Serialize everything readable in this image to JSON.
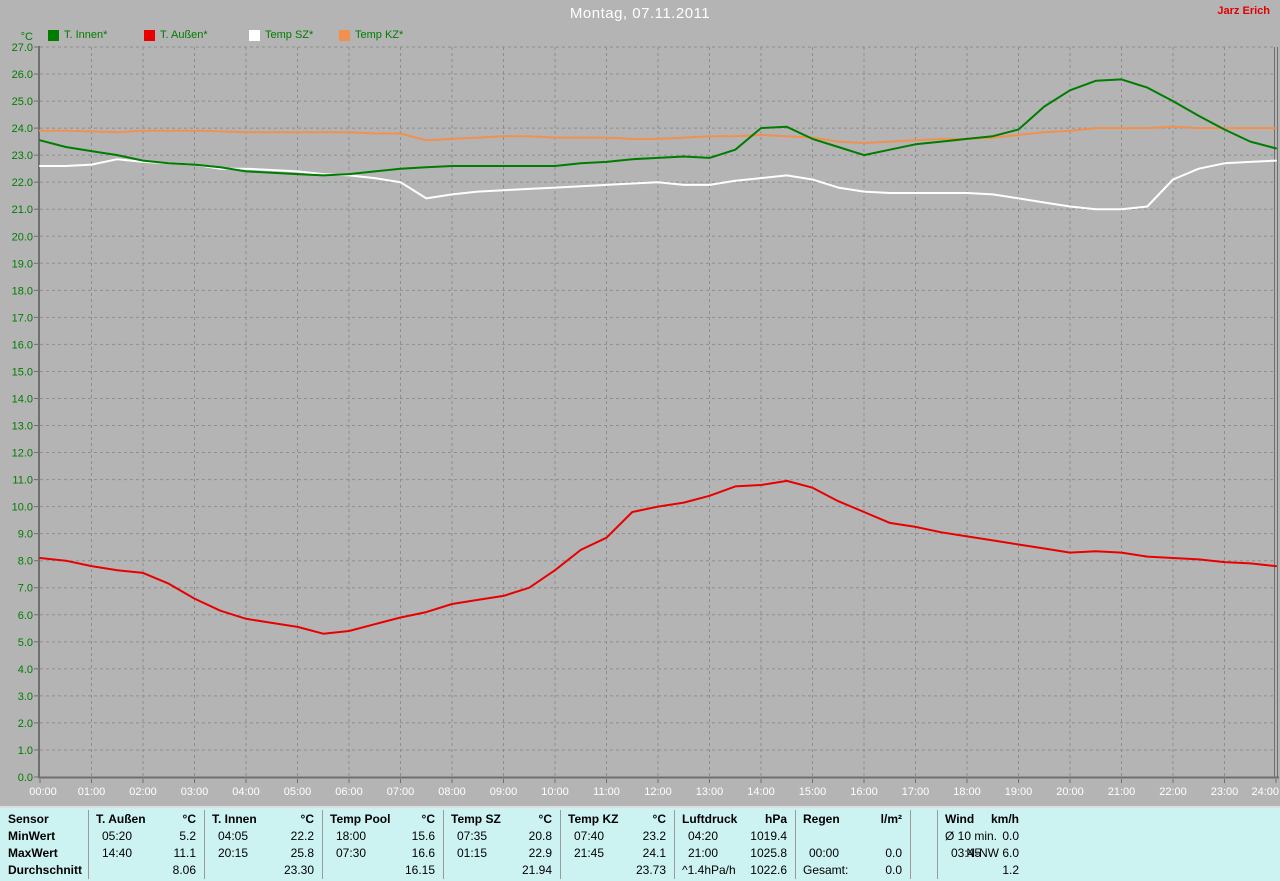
{
  "window": {
    "title": "Montag, 07.11.2011",
    "author": "Jarz Erich"
  },
  "chart_data": {
    "type": "line",
    "title": "Montag, 07.11.2011",
    "grid": true,
    "legend_position": "top-left",
    "y_axis": {
      "unit": "°C",
      "min": 0,
      "max": 27,
      "step": 1,
      "tick_labels": [
        "0.0",
        "1.0",
        "2.0",
        "3.0",
        "4.0",
        "5.0",
        "6.0",
        "7.0",
        "8.0",
        "9.0",
        "10.0",
        "11.0",
        "12.0",
        "13.0",
        "14.0",
        "15.0",
        "16.0",
        "17.0",
        "18.0",
        "19.0",
        "20.0",
        "21.0",
        "22.0",
        "23.0",
        "24.0",
        "25.0",
        "26.0",
        "27.0"
      ]
    },
    "x_axis": {
      "min_hour": 0,
      "max_hour": 24,
      "step_hours": 0.5,
      "tick_labels": [
        "00:00",
        "01:00",
        "02:00",
        "03:00",
        "04:00",
        "05:00",
        "06:00",
        "07:00",
        "08:00",
        "09:00",
        "10:00",
        "11:00",
        "12:00",
        "13:00",
        "14:00",
        "15:00",
        "16:00",
        "17:00",
        "18:00",
        "19:00",
        "20:00",
        "21:00",
        "22:00",
        "23:00",
        "24:00"
      ]
    },
    "series": [
      {
        "name": "T. Innen*",
        "key": "t-innen",
        "color": "#007c00",
        "values": [
          23.55,
          23.3,
          23.15,
          23.0,
          22.8,
          22.7,
          22.65,
          22.55,
          22.4,
          22.35,
          22.3,
          22.25,
          22.3,
          22.4,
          22.5,
          22.55,
          22.6,
          22.6,
          22.6,
          22.6,
          22.6,
          22.7,
          22.75,
          22.85,
          22.9,
          22.95,
          22.9,
          23.2,
          24.0,
          24.05,
          23.6,
          23.3,
          23.0,
          23.2,
          23.4,
          23.5,
          23.6,
          23.7,
          23.95,
          24.8,
          25.4,
          25.75,
          25.8,
          25.5,
          25.0,
          24.45,
          23.95,
          23.5,
          23.25
        ]
      },
      {
        "name": "T. Außen*",
        "key": "t-aussen",
        "color": "#e80000",
        "values": [
          8.1,
          8.0,
          7.8,
          7.65,
          7.55,
          7.15,
          6.6,
          6.15,
          5.85,
          5.7,
          5.55,
          5.3,
          5.4,
          5.65,
          5.9,
          6.1,
          6.4,
          6.55,
          6.7,
          7.0,
          7.65,
          8.4,
          8.85,
          9.8,
          10.0,
          10.15,
          10.4,
          10.75,
          10.8,
          10.95,
          10.7,
          10.2,
          9.8,
          9.4,
          9.25,
          9.05,
          8.9,
          8.75,
          8.6,
          8.45,
          8.3,
          8.35,
          8.3,
          8.15,
          8.1,
          8.05,
          7.95,
          7.9,
          7.8
        ]
      },
      {
        "name": "Temp SZ*",
        "key": "temp-sz",
        "color": "#ffffff",
        "values": [
          22.6,
          22.6,
          22.65,
          22.85,
          22.75,
          22.7,
          22.65,
          22.5,
          22.5,
          22.45,
          22.4,
          22.3,
          22.25,
          22.15,
          22.0,
          21.4,
          21.55,
          21.65,
          21.7,
          21.75,
          21.8,
          21.85,
          21.9,
          21.95,
          22.0,
          21.9,
          21.9,
          22.05,
          22.15,
          22.25,
          22.1,
          21.8,
          21.65,
          21.6,
          21.6,
          21.6,
          21.6,
          21.55,
          21.4,
          21.25,
          21.1,
          21.0,
          21.0,
          21.1,
          22.1,
          22.5,
          22.7,
          22.75,
          22.8
        ]
      },
      {
        "name": "Temp KZ*",
        "key": "temp-kz",
        "color": "#f0914e",
        "values": [
          23.9,
          23.9,
          23.88,
          23.85,
          23.9,
          23.9,
          23.9,
          23.88,
          23.85,
          23.85,
          23.85,
          23.85,
          23.85,
          23.8,
          23.8,
          23.55,
          23.6,
          23.65,
          23.7,
          23.7,
          23.65,
          23.65,
          23.65,
          23.6,
          23.6,
          23.65,
          23.7,
          23.7,
          23.75,
          23.7,
          23.65,
          23.5,
          23.45,
          23.5,
          23.55,
          23.6,
          23.6,
          23.65,
          23.75,
          23.85,
          23.9,
          24.0,
          24.0,
          24.0,
          24.05,
          24.0,
          24.0,
          24.0,
          24.0
        ]
      }
    ]
  },
  "stats_table": {
    "row_labels": [
      "Sensor",
      "MinWert",
      "MaxWert",
      "Durchschnitt"
    ],
    "columns": [
      {
        "name": "T. Außen",
        "unit": "°C",
        "min": [
          "05:20",
          "5.2"
        ],
        "max": [
          "14:40",
          "11.1"
        ],
        "avg": [
          "",
          "8.06"
        ]
      },
      {
        "name": "T. Innen",
        "unit": "°C",
        "min": [
          "04:05",
          "22.2"
        ],
        "max": [
          "20:15",
          "25.8"
        ],
        "avg": [
          "",
          "23.30"
        ]
      },
      {
        "name": "Temp Pool",
        "unit": "°C",
        "min": [
          "18:00",
          "15.6"
        ],
        "max": [
          "07:30",
          "16.6"
        ],
        "avg": [
          "",
          "16.15"
        ]
      },
      {
        "name": "Temp SZ",
        "unit": "°C",
        "min": [
          "07:35",
          "20.8"
        ],
        "max": [
          "01:15",
          "22.9"
        ],
        "avg": [
          "",
          "21.94"
        ]
      },
      {
        "name": "Temp KZ",
        "unit": "°C",
        "min": [
          "07:40",
          "23.2"
        ],
        "max": [
          "21:45",
          "24.1"
        ],
        "avg": [
          "",
          "23.73"
        ]
      },
      {
        "name": "Luftdruck",
        "unit": "hPa",
        "min": [
          "04:20",
          "1019.4"
        ],
        "max": [
          "21:00",
          "1025.8"
        ],
        "avg": [
          "^1.4hPa/h",
          "1022.6"
        ]
      },
      {
        "name": "Regen",
        "unit": "l/m²",
        "min": [
          "",
          ""
        ],
        "max": [
          "00:00",
          "0.0"
        ],
        "avg": [
          "Gesamt:",
          "0.0"
        ]
      },
      {
        "name": "Wind",
        "unit": "km/h",
        "min": [
          "Ø 10 min.",
          "0.0"
        ],
        "max": [
          "03:45",
          "N-NW 6.0"
        ],
        "avg": [
          "",
          "1.2"
        ]
      }
    ]
  },
  "colors": {
    "background": "#b4b4b4",
    "grid": "#8e8e8e",
    "axis": "#6f6f6f",
    "axis_label_y": "#007c00",
    "axis_label_x": "#ffffff",
    "title": "#ffffff",
    "author": "#e00000",
    "legend_text": "#007c00",
    "table_bg": "#cdf2f2",
    "table_line": "#9a9a9a",
    "table_text": "#000000"
  }
}
